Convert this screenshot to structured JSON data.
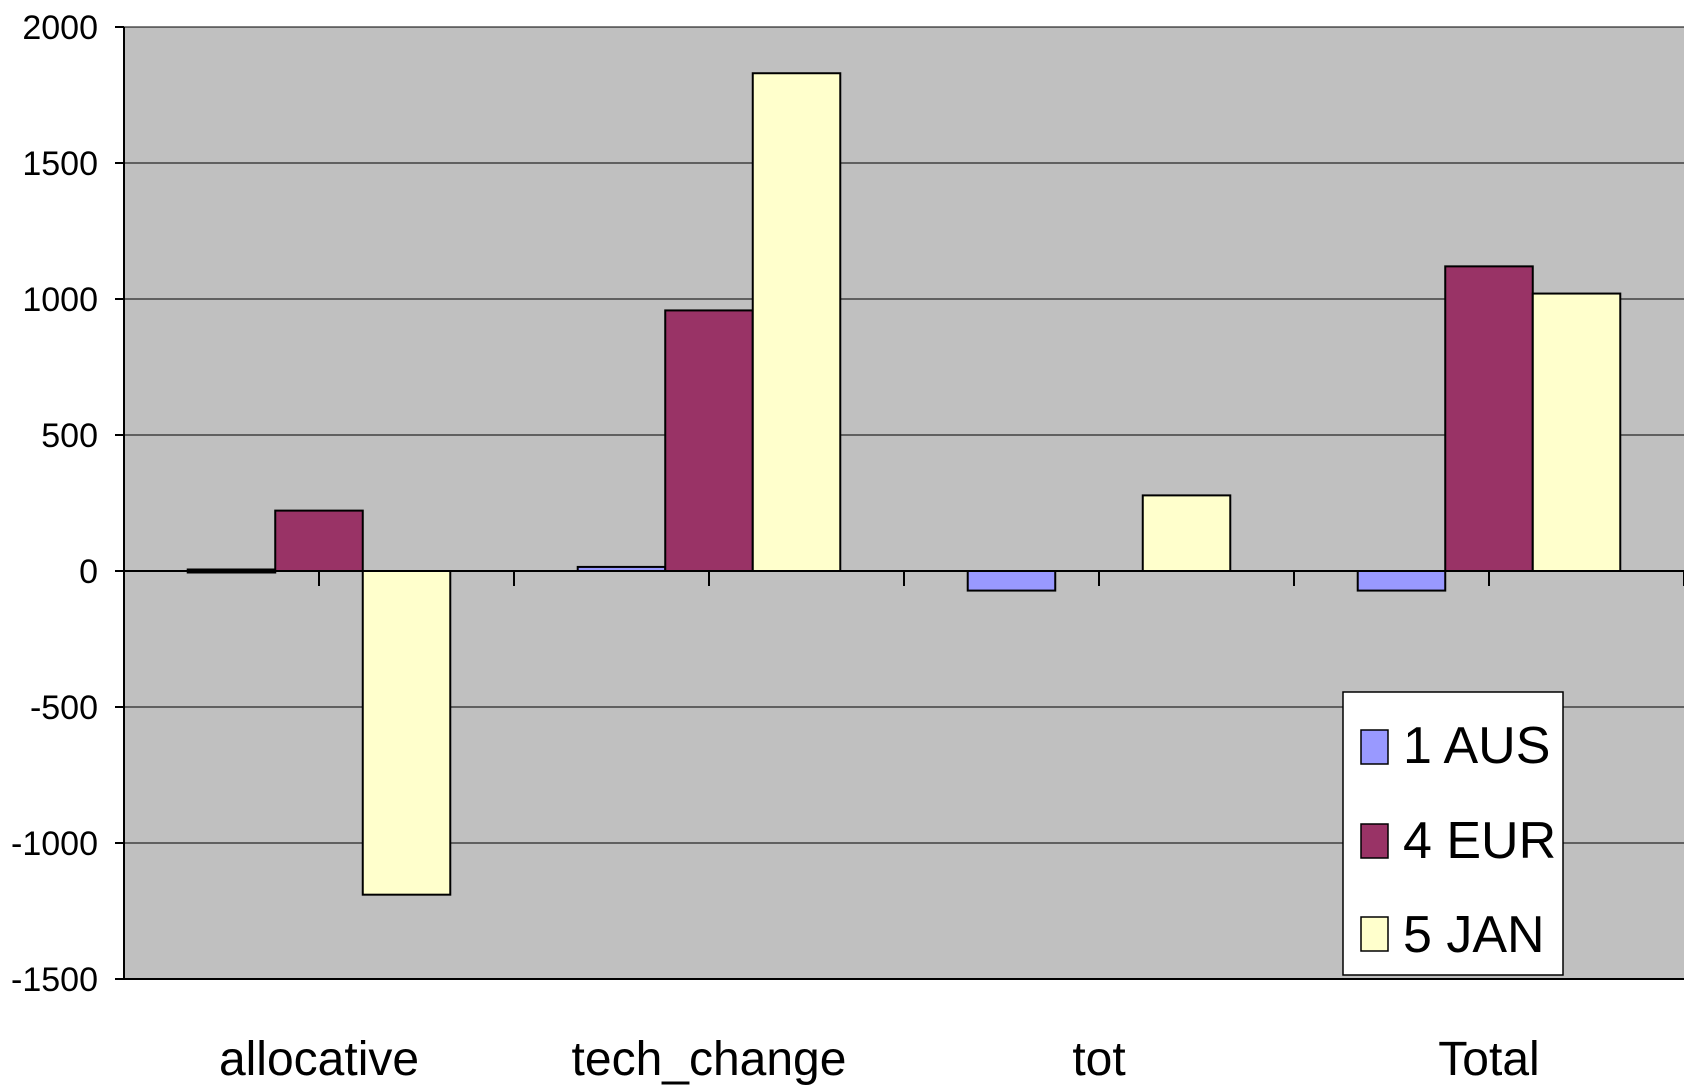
{
  "chart_data": {
    "type": "bar",
    "title": "",
    "xlabel": "",
    "ylabel": "",
    "categories": [
      "allocative",
      "tech_change",
      "tot",
      "Total"
    ],
    "series": [
      {
        "name": "1 AUS",
        "values": [
          -8,
          15,
          -72,
          -72
        ],
        "color": "#9999ff"
      },
      {
        "name": "4 EUR",
        "values": [
          222,
          958,
          0,
          1120
        ],
        "color": "#993366"
      },
      {
        "name": "5 JAN",
        "values": [
          -1190,
          1830,
          278,
          1020
        ],
        "color": "#ffffcc"
      }
    ],
    "ylim": [
      -1500,
      2000
    ],
    "yticks": [
      -1500,
      -1000,
      -500,
      0,
      500,
      1000,
      1500,
      2000
    ],
    "ytick_labels": [
      "-1500",
      "-1000",
      "-500",
      "0",
      "500",
      "1000",
      "1500",
      "2000"
    ],
    "grid": true,
    "plot_background": "#c0c0c0",
    "legend_position": "lower-right"
  }
}
